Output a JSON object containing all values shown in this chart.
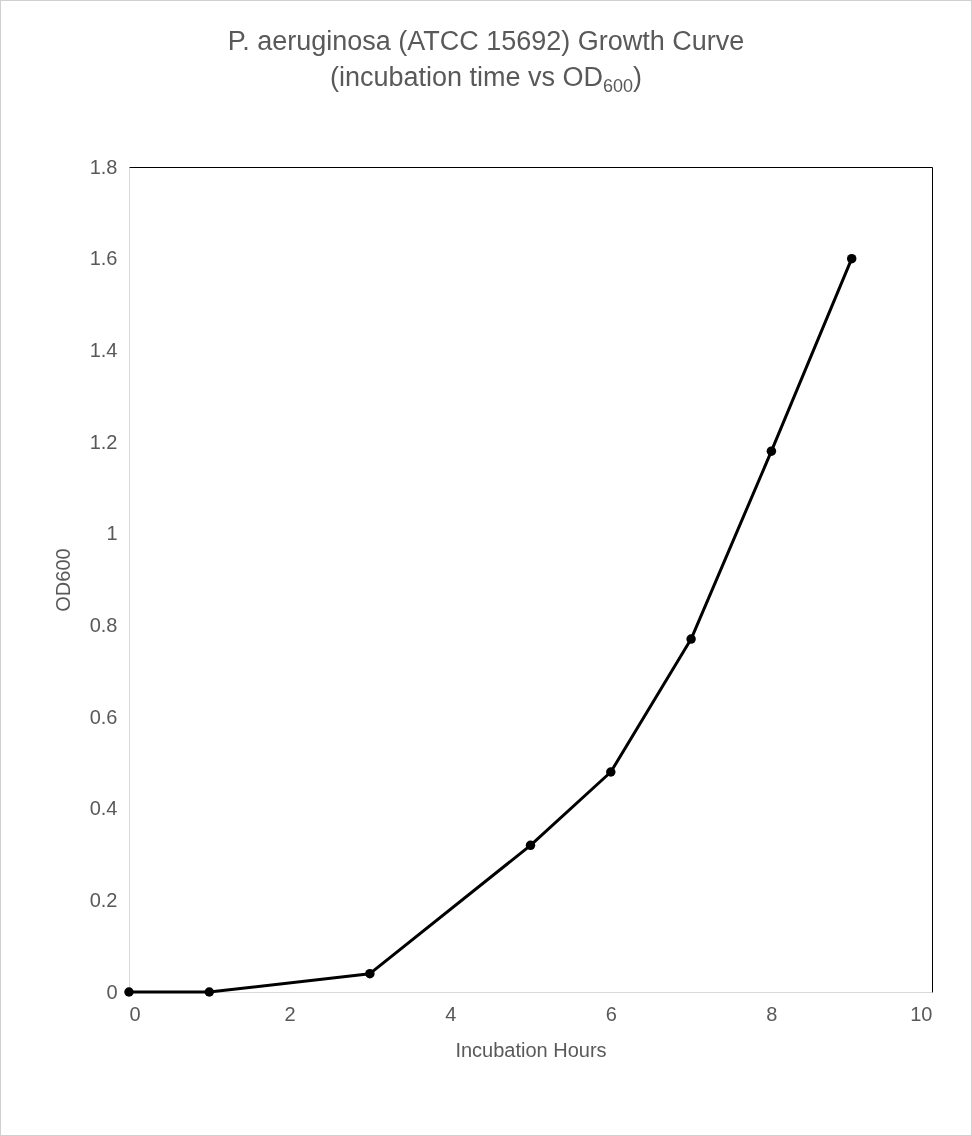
{
  "chart_data": {
    "type": "line",
    "title": "P. aeruginosa (ATCC 15692) Growth Curve (incubation time vs OD$_{600}$)",
    "xlabel": "Incubation Hours",
    "ylabel": "OD600",
    "x": [
      0,
      1,
      3,
      5,
      6,
      7,
      8,
      9
    ],
    "series": [
      {
        "color": "#000000",
        "values": [
          0,
          0,
          0.04,
          0.32,
          0.48,
          0.77,
          1.18,
          1.6
        ]
      }
    ],
    "xlim": [
      0,
      10
    ],
    "xticks": [
      0,
      2,
      4,
      6,
      8,
      10
    ],
    "ylim": [
      0,
      1.8
    ],
    "yticks": [
      0,
      0.2,
      0.4,
      0.6,
      0.8,
      1,
      1.2,
      1.4,
      1.6,
      1.8
    ],
    "grid": false,
    "marker": "circle",
    "line_style": "solid"
  }
}
